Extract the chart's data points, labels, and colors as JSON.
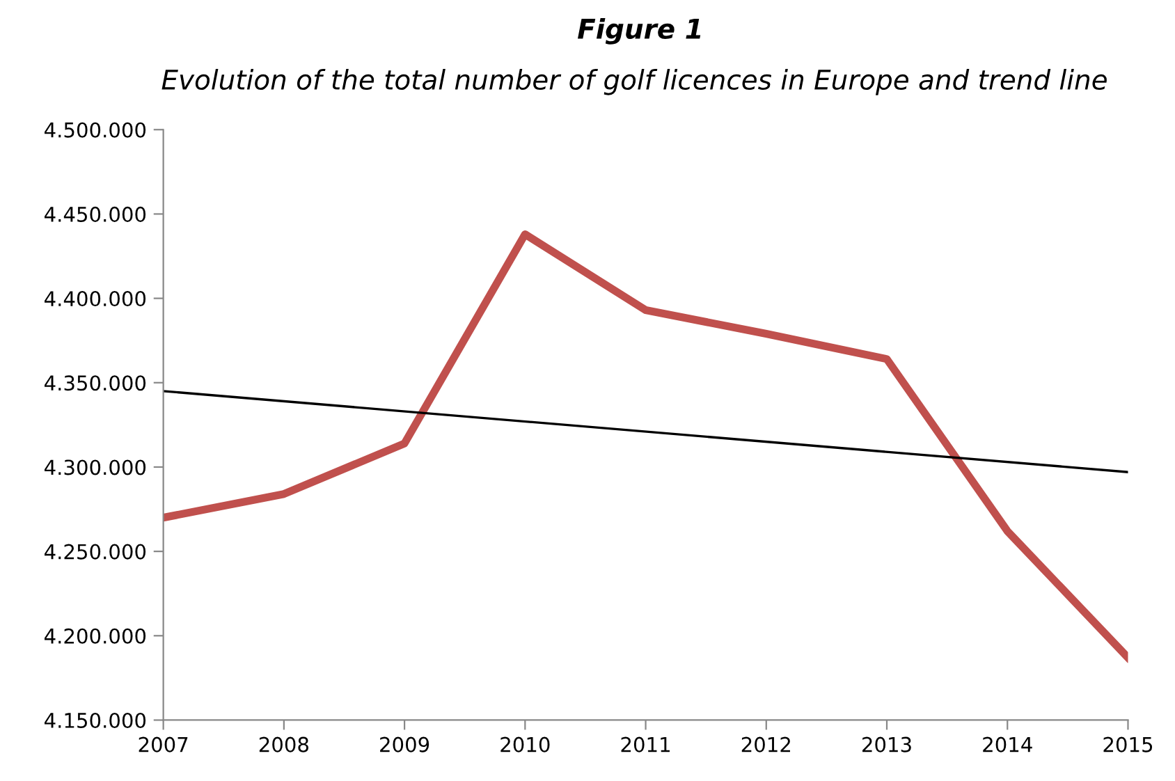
{
  "chart_data": {
    "type": "line",
    "title": "Figure 1",
    "subtitle": "Evolution of the total number of golf licences in Europe and trend line",
    "x": [
      2007,
      2008,
      2009,
      2010,
      2011,
      2012,
      2013,
      2014,
      2015
    ],
    "series": [
      {
        "color": "#c0504d",
        "values": [
          4270000,
          4284000,
          4314000,
          4438000,
          4393000,
          4379000,
          4364000,
          4262000,
          4187000
        ]
      },
      {
        "color": "#000000",
        "x": [
          2007,
          2015
        ],
        "values": [
          4345000,
          4297000
        ]
      }
    ],
    "xlim": [
      2007,
      2015
    ],
    "xticks": [
      2007,
      2008,
      2009,
      2010,
      2011,
      2012,
      2013,
      2014,
      2015
    ],
    "ylim": [
      4150000,
      4500000
    ],
    "yticks": [
      {
        "value": 4150000,
        "label": "4.150.000"
      },
      {
        "value": 4200000,
        "label": "4.200.000"
      },
      {
        "value": 4250000,
        "label": "4.250.000"
      },
      {
        "value": 4300000,
        "label": "4.300.000"
      },
      {
        "value": 4350000,
        "label": "4.350.000"
      },
      {
        "value": 4400000,
        "label": "4.400.000"
      },
      {
        "value": 4450000,
        "label": "4.450.000"
      },
      {
        "value": 4500000,
        "label": "4.500.000"
      }
    ],
    "grid": false,
    "legend": false,
    "marker": "none",
    "line_style": "solid"
  }
}
